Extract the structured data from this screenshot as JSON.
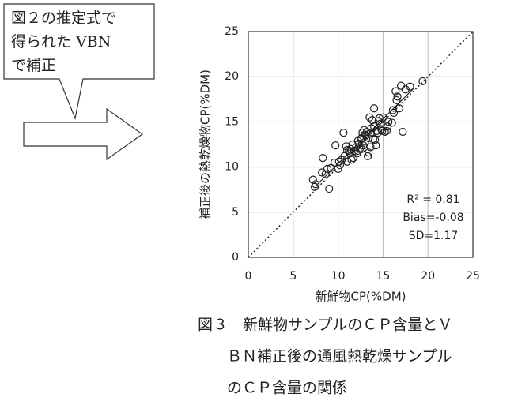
{
  "callout": {
    "lines": [
      "図２の推定式で",
      "得られた VBN",
      "で補正"
    ]
  },
  "chart_data": {
    "type": "scatter",
    "xlabel": "新鮮物CP(%DM)",
    "ylabel": "補正後の熱乾燥物CP(%DM)",
    "annotations": [
      "R² = 0.81",
      "Bias=-0.08",
      "SD=1.17"
    ],
    "xlim": [
      0,
      25
    ],
    "ylim": [
      0,
      25
    ],
    "xticks": [
      0,
      5,
      10,
      15,
      20,
      25
    ],
    "yticks": [
      0,
      5,
      10,
      15,
      20,
      25
    ],
    "grid": true,
    "color": "#222222",
    "x": [
      7.2,
      7.4,
      7.5,
      8.2,
      8.3,
      8.8,
      9,
      8.6,
      9.6,
      9.7,
      10,
      10.2,
      10.4,
      10.6,
      10.7,
      11,
      11.2,
      11.4,
      11.5,
      11.7,
      12,
      12.2,
      12.3,
      12.5,
      12.6,
      12.7,
      12.8,
      13,
      13,
      13.2,
      13.3,
      13.4,
      13.5,
      13.6,
      13.7,
      13.8,
      13.9,
      14,
      14,
      14.2,
      14.3,
      14.5,
      14.6,
      14.7,
      14.8,
      15,
      15.2,
      15.4,
      15.5,
      16,
      16.2,
      16.4,
      16.5,
      16.6,
      16.8,
      17,
      17.2,
      17.5,
      18,
      19.4,
      11.6,
      12.1,
      10.9,
      11.3,
      12.9,
      13.1,
      14.9,
      14.1,
      12.4,
      15.6,
      11.8,
      12.2,
      10.1,
      9.2,
      13.6,
      14.4,
      11,
      12.6,
      16.1,
      13.4
    ],
    "values": [
      8.6,
      7.8,
      8.1,
      9.4,
      11,
      9.8,
      7.6,
      9.2,
      10.5,
      12.4,
      9.8,
      10.2,
      10.8,
      13.8,
      11.2,
      10.6,
      11.8,
      12,
      10.8,
      11,
      12.2,
      11.8,
      12.6,
      13.1,
      12,
      13.8,
      12.4,
      13.6,
      12.8,
      13.9,
      11.2,
      11.6,
      15.5,
      12.2,
      14.3,
      15.2,
      13.1,
      16.5,
      14.5,
      12.4,
      14,
      15.1,
      15.4,
      14.8,
      14.2,
      15.5,
      13.9,
      14,
      14.5,
      14.9,
      16,
      18.4,
      17.4,
      17.8,
      16.5,
      19,
      13.9,
      18.6,
      18.9,
      19.5,
      12.5,
      11.5,
      12.3,
      11.5,
      14.1,
      13.5,
      14,
      13,
      12,
      15,
      11.8,
      12.9,
      10.6,
      9.9,
      13.7,
      13.8,
      11.9,
      13.2,
      16.3,
      13.2
    ],
    "fit_line": {
      "x": [
        7.5,
        18.5
      ],
      "values": [
        7.9,
        18.8
      ]
    }
  },
  "caption": {
    "lines": [
      "図３　新鮮物サンプルのＣＰ含量とＶ",
      "ＢＮ補正後の通風熱乾燥サンプル",
      "のＣＰ含量の関係"
    ]
  }
}
